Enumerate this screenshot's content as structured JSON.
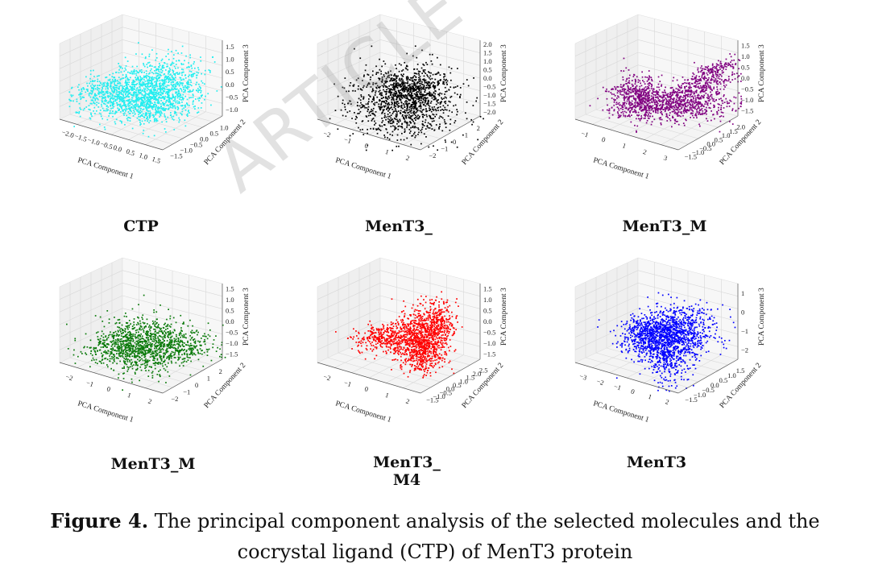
{
  "chart_data": [
    {
      "type": "scatter",
      "title": "CTP",
      "color": "#22eef0",
      "shape": "bridge",
      "xlabel": "PCA Component 1",
      "ylabel": "PCA Component 2",
      "zlabel": "PCA Component 3",
      "xticks": [
        "−2.0",
        "−1.5",
        "−1.0",
        "−0.5",
        "0.0",
        "0.5",
        "1.0",
        "1.5"
      ],
      "yticks": [
        "−1.5",
        "−1.0",
        "−0.5",
        "0.0",
        "0.5",
        "1.0"
      ],
      "zticks": [
        "1.5",
        "1.0",
        "0.5",
        "0.0",
        "−0.5",
        "−1.0"
      ]
    },
    {
      "type": "scatter",
      "title": "MenT3_",
      "color": "#000000",
      "shape": "blob",
      "xlabel": "PCA Component 1",
      "ylabel": "PCA Component 2",
      "zlabel": "PCA Component 3",
      "xticks": [
        "−2",
        "−1",
        "0",
        "1",
        "2"
      ],
      "yticks": [
        "−2",
        "−1",
        "0",
        "1",
        "2"
      ],
      "zticks": [
        "2.0",
        "1.5",
        "1.0",
        "0.5",
        "0.0",
        "−0.5",
        "−1.0",
        "−1.5",
        "−2.0"
      ]
    },
    {
      "type": "scatter",
      "title": "MenT3_M",
      "color": "#800080",
      "shape": "fork",
      "xlabel": "PCA Component 1",
      "ylabel": "PCA Component 2",
      "zlabel": "PCA Component 3",
      "xticks": [
        "−1",
        "0",
        "1",
        "2",
        "3"
      ],
      "yticks": [
        "−1.5",
        "−1.0",
        "−0.5",
        "0.0",
        "0.5",
        "1.0",
        "1.5",
        "2.0"
      ],
      "zticks": [
        "1.5",
        "1.0",
        "0.5",
        "0.0",
        "−0.5",
        "−1.0",
        "−1.5"
      ]
    },
    {
      "type": "scatter",
      "title": "MenT3_M",
      "color": "#0a7a0a",
      "shape": "wide",
      "xlabel": "PCA Component 1",
      "ylabel": "PCA Component 2",
      "zlabel": "PCA Component 3",
      "xticks": [
        "−2",
        "−1",
        "0",
        "1",
        "2"
      ],
      "yticks": [
        "−2",
        "−1",
        "0",
        "1",
        "2"
      ],
      "zticks": [
        "1.5",
        "1.0",
        "0.5",
        "0.0",
        "−0.5",
        "−1.0",
        "−1.5"
      ]
    },
    {
      "type": "scatter",
      "title": "MenT3_\nM4",
      "color": "#ff0000",
      "shape": "hook",
      "xlabel": "PCA Component 1",
      "ylabel": "PCA Component 2",
      "zlabel": "PCA Component 3",
      "xticks": [
        "−2",
        "−1",
        "0",
        "1",
        "2"
      ],
      "yticks": [
        "−1.5",
        "−1.0",
        "−0.5",
        "0.0",
        "0.5",
        "1.0",
        "1.5",
        "2.0",
        "2.5"
      ],
      "zticks": [
        "1.5",
        "1.0",
        "0.5",
        "0.0",
        "−0.5",
        "−1.0",
        "−1.5"
      ]
    },
    {
      "type": "scatter",
      "title": "MenT3",
      "color": "#0000ff",
      "shape": "dense",
      "xlabel": "PCA Component 1",
      "ylabel": "PCA Component 2",
      "zlabel": "PCA Component 3",
      "xticks": [
        "−3",
        "−2",
        "−1",
        "0",
        "1",
        "2"
      ],
      "yticks": [
        "−1.5",
        "−1.0",
        "−0.5",
        "0.0",
        "0.5",
        "1.0",
        "1.5"
      ],
      "zticks": [
        "1",
        "0",
        "−1",
        "−2"
      ]
    }
  ],
  "caption": {
    "label": "Figure 4.",
    "text": "The principal component analysis of the selected molecules and the cocrystal ligand (CTP) of MenT3 protein"
  },
  "watermark": "ARTICLE IN PRESS"
}
